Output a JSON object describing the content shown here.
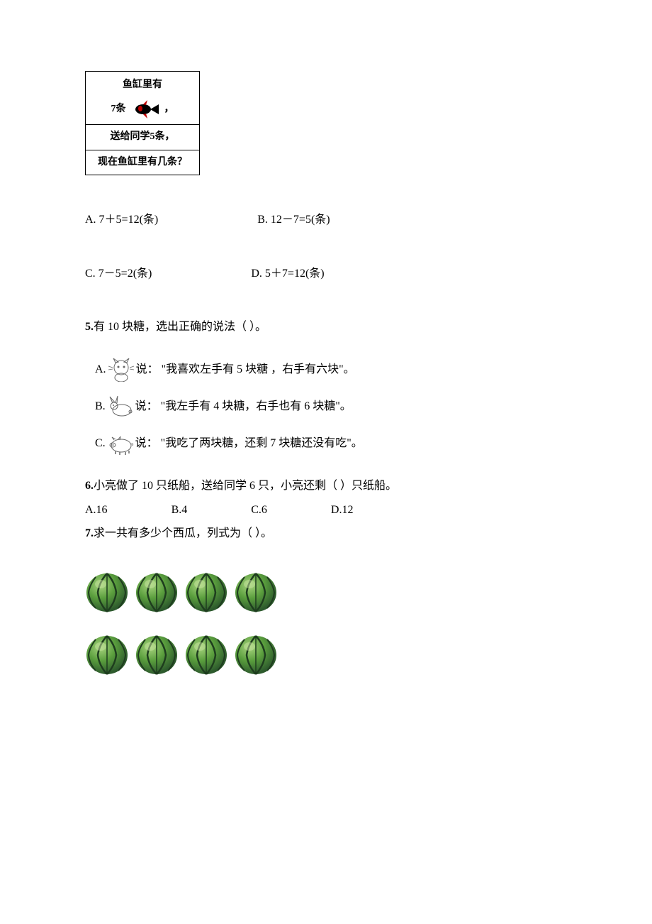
{
  "fish_box": {
    "line1": "鱼缸里有",
    "count_text": "7条",
    "comma": "，",
    "line3": "送给同学5条，",
    "line4": "现在鱼缸里有几条？"
  },
  "q4_options": {
    "A": "A. 7＋5=12(条)",
    "B": "B. 12－7=5(条)",
    "C": "C. 7－5=2(条)",
    "D": "D. 5＋7=12(条)"
  },
  "q5": {
    "number": "5.",
    "stem": "有 10 块糖，选出正确的说法（   ）。",
    "optA_prefix": "A.",
    "optA_text": "说： \"我喜欢左手有 5 块糖 ，右手有六块\"。",
    "optB_prefix": "B.",
    "optB_text": "说： \"我左手有 4 块糖，右手也有 6 块糖\"。",
    "optC_prefix": "C.",
    "optC_text": "说： \"我吃了两块糖，还剩 7 块糖还没有吃\"。"
  },
  "q6": {
    "number": "6.",
    "stem": "小亮做了 10 只纸船，送给同学 6 只，小亮还剩（    ）只纸船。",
    "options": {
      "A": "A.16",
      "B": "B.4",
      "C": "C.6",
      "D": "D.12"
    }
  },
  "q7": {
    "number": "7.",
    "stem": "求一共有多少个西瓜，列式为（   ）。"
  },
  "colors": {
    "text": "#000000",
    "background": "#ffffff",
    "watermelon_green_dark": "#2d5a2d",
    "watermelon_green_light": "#6aa84f",
    "fish_red": "#c00000",
    "fish_black": "#000000",
    "animal_gray": "#888888"
  },
  "watermelon_rows": [
    4,
    4
  ]
}
